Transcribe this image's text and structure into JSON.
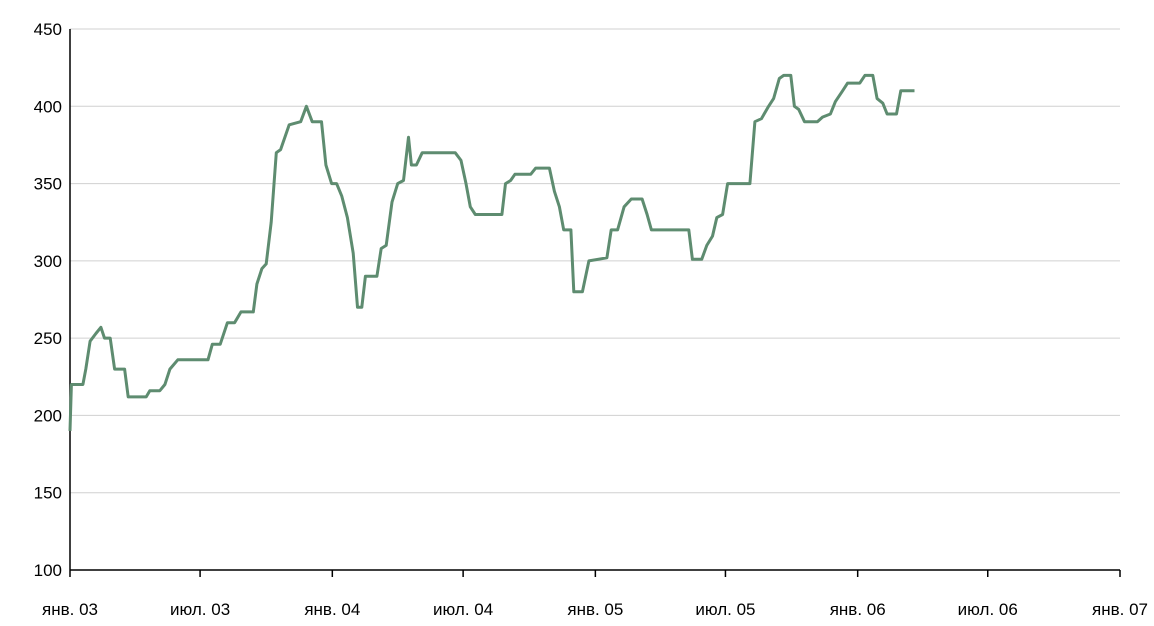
{
  "chart_data": {
    "type": "line",
    "title": "",
    "xlabel": "",
    "ylabel": "",
    "ylim": [
      100,
      450
    ],
    "y_ticks": [
      100,
      150,
      200,
      250,
      300,
      350,
      400,
      450
    ],
    "x_range": [
      "2003-01-01",
      "2007-01-01"
    ],
    "x_ticks": [
      {
        "date": "2003-01-01",
        "label": "янв. 03"
      },
      {
        "date": "2003-07-01",
        "label": "июл. 03"
      },
      {
        "date": "2004-01-01",
        "label": "янв. 04"
      },
      {
        "date": "2004-07-01",
        "label": "июл. 04"
      },
      {
        "date": "2005-01-01",
        "label": "янв. 05"
      },
      {
        "date": "2005-07-01",
        "label": "июл. 05"
      },
      {
        "date": "2006-01-01",
        "label": "янв. 06"
      },
      {
        "date": "2006-07-01",
        "label": "июл. 06"
      },
      {
        "date": "2007-01-01",
        "label": "янв. 07"
      }
    ],
    "grid": true,
    "legend": "none",
    "color": "#5e8c70",
    "series": [
      {
        "points": [
          [
            "2003-01-01",
            190
          ],
          [
            "2003-01-03",
            220
          ],
          [
            "2003-01-13",
            220
          ],
          [
            "2003-01-19",
            220
          ],
          [
            "2003-01-23",
            230
          ],
          [
            "2003-01-29",
            248
          ],
          [
            "2003-02-06",
            253
          ],
          [
            "2003-02-13",
            257
          ],
          [
            "2003-02-18",
            250
          ],
          [
            "2003-02-26",
            250
          ],
          [
            "2003-03-04",
            230
          ],
          [
            "2003-03-18",
            230
          ],
          [
            "2003-03-23",
            212
          ],
          [
            "2003-04-17",
            212
          ],
          [
            "2003-04-22",
            216
          ],
          [
            "2003-05-06",
            216
          ],
          [
            "2003-05-13",
            220
          ],
          [
            "2003-05-20",
            230
          ],
          [
            "2003-05-31",
            236
          ],
          [
            "2003-06-25",
            236
          ],
          [
            "2003-07-12",
            236
          ],
          [
            "2003-07-18",
            246
          ],
          [
            "2003-07-29",
            246
          ],
          [
            "2003-08-08",
            260
          ],
          [
            "2003-08-18",
            260
          ],
          [
            "2003-08-27",
            267
          ],
          [
            "2003-09-13",
            267
          ],
          [
            "2003-09-18",
            285
          ],
          [
            "2003-09-25",
            295
          ],
          [
            "2003-10-01",
            298
          ],
          [
            "2003-10-08",
            325
          ],
          [
            "2003-10-15",
            370
          ],
          [
            "2003-10-21",
            372
          ],
          [
            "2003-11-02",
            388
          ],
          [
            "2003-11-18",
            390
          ],
          [
            "2003-11-26",
            400
          ],
          [
            "2003-12-04",
            390
          ],
          [
            "2003-12-17",
            390
          ],
          [
            "2003-12-23",
            362
          ],
          [
            "2003-12-31",
            350
          ],
          [
            "2004-01-07",
            350
          ],
          [
            "2004-01-14",
            342
          ],
          [
            "2004-01-22",
            328
          ],
          [
            "2004-01-30",
            305
          ],
          [
            "2004-02-05",
            270
          ],
          [
            "2004-02-11",
            270
          ],
          [
            "2004-02-16",
            290
          ],
          [
            "2004-03-03",
            290
          ],
          [
            "2004-03-09",
            308
          ],
          [
            "2004-03-16",
            310
          ],
          [
            "2004-03-24",
            338
          ],
          [
            "2004-04-01",
            350
          ],
          [
            "2004-04-09",
            352
          ],
          [
            "2004-04-16",
            380
          ],
          [
            "2004-04-20",
            362
          ],
          [
            "2004-04-27",
            362
          ],
          [
            "2004-05-05",
            370
          ],
          [
            "2004-06-10",
            370
          ],
          [
            "2004-06-20",
            370
          ],
          [
            "2004-06-28",
            365
          ],
          [
            "2004-07-05",
            350
          ],
          [
            "2004-07-11",
            335
          ],
          [
            "2004-07-18",
            330
          ],
          [
            "2004-08-24",
            330
          ],
          [
            "2004-08-29",
            350
          ],
          [
            "2004-09-05",
            352
          ],
          [
            "2004-09-11",
            356
          ],
          [
            "2004-10-03",
            356
          ],
          [
            "2004-10-10",
            360
          ],
          [
            "2004-10-29",
            360
          ],
          [
            "2004-11-05",
            345
          ],
          [
            "2004-11-12",
            335
          ],
          [
            "2004-11-18",
            320
          ],
          [
            "2004-11-28",
            320
          ],
          [
            "2004-12-02",
            280
          ],
          [
            "2004-12-14",
            280
          ],
          [
            "2004-12-23",
            300
          ],
          [
            "2005-01-17",
            302
          ],
          [
            "2005-01-23",
            320
          ],
          [
            "2005-02-01",
            320
          ],
          [
            "2005-02-10",
            335
          ],
          [
            "2005-02-20",
            340
          ],
          [
            "2005-03-07",
            340
          ],
          [
            "2005-03-14",
            330
          ],
          [
            "2005-03-20",
            320
          ],
          [
            "2005-05-04",
            320
          ],
          [
            "2005-05-11",
            320
          ],
          [
            "2005-05-16",
            301
          ],
          [
            "2005-05-29",
            301
          ],
          [
            "2005-06-05",
            310
          ],
          [
            "2005-06-13",
            316
          ],
          [
            "2005-06-19",
            328
          ],
          [
            "2005-06-27",
            330
          ],
          [
            "2005-07-04",
            350
          ],
          [
            "2005-08-04",
            350
          ],
          [
            "2005-08-11",
            390
          ],
          [
            "2005-08-20",
            392
          ],
          [
            "2005-08-30",
            400
          ],
          [
            "2005-09-06",
            405
          ],
          [
            "2005-09-14",
            418
          ],
          [
            "2005-09-20",
            420
          ],
          [
            "2005-09-30",
            420
          ],
          [
            "2005-10-05",
            400
          ],
          [
            "2005-10-11",
            398
          ],
          [
            "2005-10-19",
            390
          ],
          [
            "2005-11-06",
            390
          ],
          [
            "2005-11-13",
            393
          ],
          [
            "2005-11-24",
            395
          ],
          [
            "2005-12-01",
            403
          ],
          [
            "2005-12-11",
            410
          ],
          [
            "2005-12-18",
            415
          ],
          [
            "2006-01-04",
            415
          ],
          [
            "2006-01-11",
            420
          ],
          [
            "2006-01-22",
            420
          ],
          [
            "2006-01-28",
            405
          ],
          [
            "2006-02-05",
            402
          ],
          [
            "2006-02-11",
            395
          ],
          [
            "2006-02-24",
            395
          ],
          [
            "2006-03-02",
            410
          ],
          [
            "2006-03-21",
            410
          ]
        ]
      }
    ]
  }
}
